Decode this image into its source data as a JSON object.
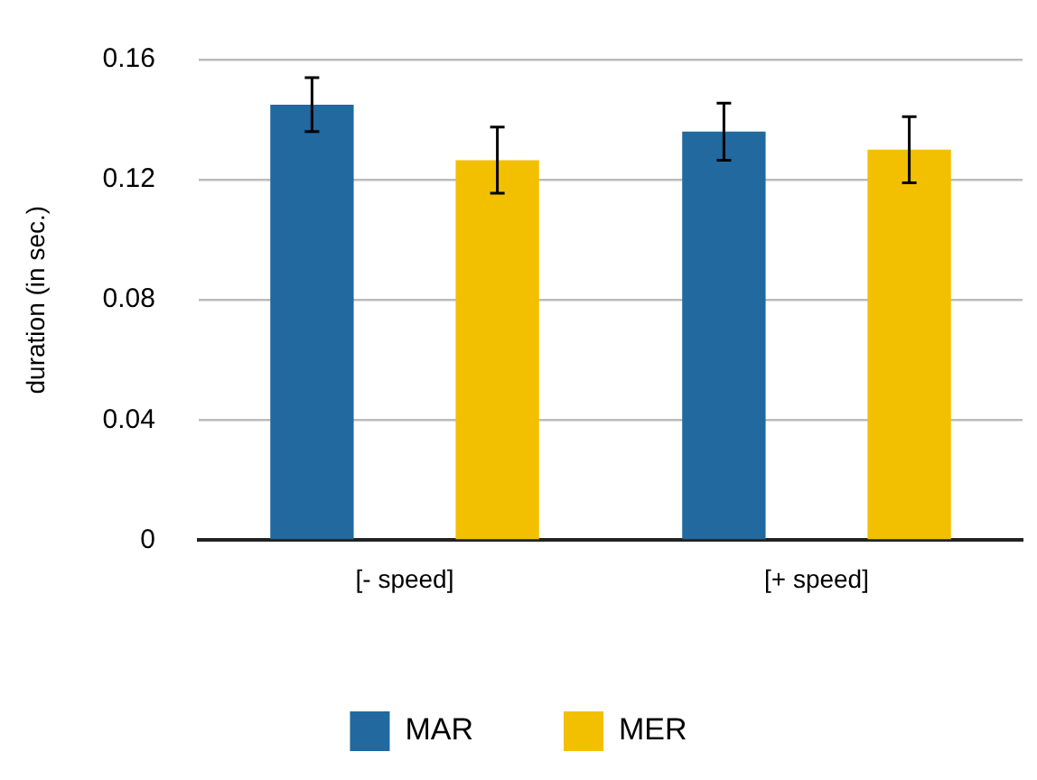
{
  "chart_data": {
    "type": "bar",
    "ylabel": "duration (in sec.)",
    "categories": [
      "[- speed]",
      "[+ speed]"
    ],
    "series": [
      {
        "name": "MAR",
        "color": "#21699f",
        "values": [
          0.145,
          0.136
        ],
        "errors": [
          0.009,
          0.0095
        ]
      },
      {
        "name": "MER",
        "color": "#f2c000",
        "values": [
          0.1265,
          0.13
        ],
        "errors": [
          0.011,
          0.011
        ]
      }
    ],
    "ylim": [
      0,
      0.16
    ],
    "yticks": [
      0,
      0.04,
      0.08,
      0.12,
      0.16
    ],
    "grid": "y",
    "legend": "bottom"
  }
}
